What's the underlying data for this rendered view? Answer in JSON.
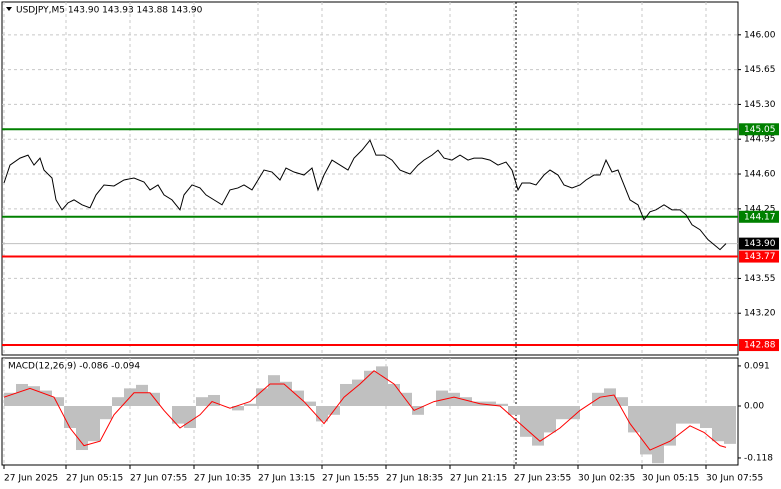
{
  "chart_data": [
    {
      "type": "line",
      "title": "USDJPY,M5  143.90 143.93 143.88 143.90",
      "xlim": [
        -1,
        367
      ],
      "ylim": [
        142.78,
        146.33
      ],
      "yticks": [
        {
          "value": 146.0,
          "label": "146.00"
        },
        {
          "value": 145.65,
          "label": "145.65"
        },
        {
          "value": 145.3,
          "label": "145.30"
        },
        {
          "value": 144.95,
          "label": "144.95"
        },
        {
          "value": 144.6,
          "label": "144.60"
        },
        {
          "value": 144.25,
          "label": "144.25"
        },
        {
          "value": 143.55,
          "label": "143.55"
        },
        {
          "value": 143.2,
          "label": "143.20"
        }
      ],
      "grid": true,
      "series": [
        {
          "color": "#000000",
          "x": [
            0,
            3,
            8,
            12,
            15,
            18,
            20,
            24,
            26,
            29,
            32,
            35,
            39,
            43,
            46,
            50,
            55,
            60,
            65,
            70,
            73,
            77,
            80,
            84,
            88,
            90,
            94,
            98,
            101,
            105,
            109,
            113,
            117,
            120,
            124,
            127,
            130,
            134,
            138,
            141,
            145,
            150,
            154,
            157,
            160,
            164,
            168,
            172,
            175,
            179,
            183,
            186,
            190,
            194,
            198,
            203,
            207,
            210,
            214,
            217,
            220,
            224,
            228,
            232,
            235,
            239,
            243,
            247,
            251,
            254,
            257,
            259,
            263,
            266,
            270,
            273,
            277,
            280,
            284,
            288,
            291,
            295,
            298,
            301,
            304,
            307,
            310,
            313,
            317,
            320,
            323,
            326,
            330,
            334,
            338,
            341,
            344,
            348,
            352,
            355,
            358,
            361
          ],
          "values": [
            144.51,
            144.69,
            144.76,
            144.79,
            144.69,
            144.76,
            144.64,
            144.56,
            144.34,
            144.24,
            144.31,
            144.34,
            144.29,
            144.26,
            144.39,
            144.49,
            144.48,
            144.54,
            144.56,
            144.52,
            144.44,
            144.49,
            144.39,
            144.34,
            144.24,
            144.39,
            144.49,
            144.46,
            144.39,
            144.34,
            144.29,
            144.44,
            144.46,
            144.49,
            144.44,
            144.54,
            144.64,
            144.62,
            144.54,
            144.66,
            144.62,
            144.59,
            144.66,
            144.44,
            144.59,
            144.74,
            144.69,
            144.64,
            144.76,
            144.84,
            144.94,
            144.79,
            144.79,
            144.74,
            144.64,
            144.6,
            144.69,
            144.74,
            144.79,
            144.84,
            144.76,
            144.74,
            144.79,
            144.74,
            144.76,
            144.76,
            144.74,
            144.69,
            144.72,
            144.64,
            144.44,
            144.51,
            144.51,
            144.49,
            144.59,
            144.64,
            144.59,
            144.49,
            144.46,
            144.49,
            144.54,
            144.59,
            144.59,
            144.74,
            144.62,
            144.64,
            144.49,
            144.34,
            144.29,
            144.14,
            144.22,
            144.24,
            144.29,
            144.24,
            144.24,
            144.19,
            144.09,
            144.04,
            143.94,
            143.89,
            143.84,
            143.9
          ]
        }
      ],
      "levels": [
        {
          "value": 145.05,
          "label": "145.05",
          "color": "#008000"
        },
        {
          "value": 144.17,
          "label": "144.17",
          "color": "#008000"
        },
        {
          "value": 143.77,
          "label": "143.77",
          "color": "#ff0000"
        },
        {
          "value": 142.88,
          "label": "142.88",
          "color": "#ff0000"
        }
      ],
      "current": {
        "value": 143.9,
        "label": "143.90"
      }
    },
    {
      "type": "macd",
      "title": "MACD(12,26,9) -0.086 -0.094",
      "xlim": [
        -1,
        367
      ],
      "ylim": [
        -0.134,
        0.109
      ],
      "yticks": [
        0.091,
        {
          "value": 0,
          "label": "0.00"
        },
        -0.118
      ],
      "xticks": [
        {
          "value": 0,
          "label": "27 Jun 2025"
        },
        {
          "value": 31,
          "label": "27 Jun 05:15"
        },
        {
          "value": 63,
          "label": "27 Jun 07:55"
        },
        {
          "value": 95,
          "label": "27 Jun 10:35"
        },
        {
          "value": 127,
          "label": "27 Jun 13:15"
        },
        {
          "value": 159,
          "label": "27 Jun 15:55"
        },
        {
          "value": 191,
          "label": "27 Jun 18:35"
        },
        {
          "value": 223,
          "label": "27 Jun 21:15"
        },
        {
          "value": 255,
          "label": "27 Jun 23:55"
        },
        {
          "value": 287,
          "label": "30 Jun 02:35"
        },
        {
          "value": 319,
          "label": "30 Jun 05:15"
        },
        {
          "value": 351,
          "label": "30 Jun 07:55"
        }
      ],
      "day_separator": 256,
      "histogram": {
        "color": "#c0c0c0",
        "x": [
          0,
          6,
          12,
          18,
          24,
          30,
          36,
          42,
          48,
          54,
          60,
          66,
          72,
          78,
          84,
          90,
          96,
          102,
          108,
          114,
          120,
          126,
          132,
          138,
          144,
          150,
          156,
          162,
          168,
          174,
          180,
          186,
          192,
          198,
          204,
          210,
          216,
          222,
          228,
          234,
          240,
          246,
          252,
          258,
          264,
          270,
          276,
          282,
          288,
          294,
          300,
          306,
          312,
          318,
          324,
          330,
          336,
          342,
          348,
          354,
          360
        ],
        "values": [
          0.03,
          0.05,
          0.045,
          0.035,
          0.02,
          -0.05,
          -0.1,
          -0.08,
          -0.03,
          0.02,
          0.04,
          0.048,
          0.03,
          0.0,
          -0.04,
          -0.05,
          0.02,
          0.025,
          0.0,
          -0.01,
          0.005,
          0.04,
          0.07,
          0.055,
          0.035,
          0.01,
          -0.035,
          -0.02,
          0.05,
          0.06,
          0.08,
          0.09,
          0.05,
          0.03,
          -0.02,
          0.0,
          0.035,
          0.03,
          0.02,
          0.01,
          0.01,
          0.005,
          -0.02,
          -0.07,
          -0.09,
          -0.06,
          -0.03,
          -0.03,
          0.0,
          0.03,
          0.04,
          0.02,
          -0.06,
          -0.11,
          -0.13,
          -0.09,
          -0.04,
          -0.04,
          -0.05,
          -0.08,
          -0.086
        ]
      },
      "signal": {
        "color": "#ff0000",
        "x": [
          0,
          13,
          25,
          33,
          40,
          48,
          55,
          65,
          73,
          80,
          88,
          98,
          104,
          113,
          123,
          133,
          140,
          150,
          160,
          170,
          178,
          185,
          195,
          205,
          215,
          225,
          238,
          248,
          258,
          268,
          278,
          288,
          298,
          305,
          313,
          323,
          333,
          343,
          350,
          358,
          361
        ],
        "values": [
          0.02,
          0.04,
          0.02,
          -0.05,
          -0.09,
          -0.08,
          -0.02,
          0.03,
          0.03,
          -0.01,
          -0.05,
          -0.02,
          0.01,
          -0.005,
          0.01,
          0.05,
          0.05,
          0.01,
          -0.04,
          0.02,
          0.05,
          0.08,
          0.05,
          -0.01,
          0.01,
          0.02,
          0.005,
          0.0,
          -0.04,
          -0.08,
          -0.05,
          -0.01,
          0.02,
          0.025,
          -0.04,
          -0.1,
          -0.08,
          -0.045,
          -0.06,
          -0.09,
          -0.094
        ]
      }
    }
  ]
}
